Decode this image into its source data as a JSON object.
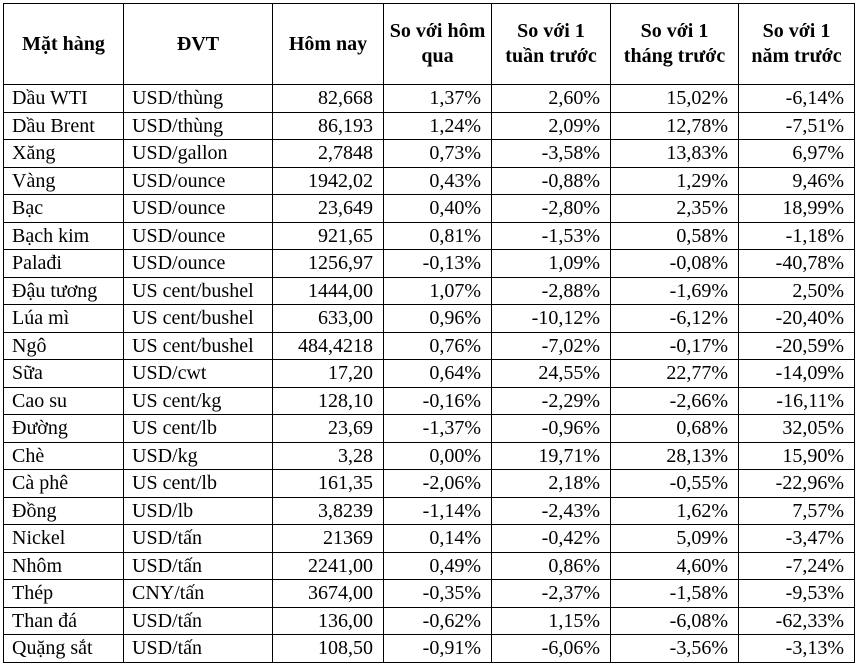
{
  "table": {
    "headers": [
      "Mặt hàng",
      "ĐVT",
      "Hôm nay",
      "So với hôm qua",
      "So với 1 tuần trước",
      "So với 1 tháng trước",
      "So với 1 năm trước"
    ],
    "rows": [
      [
        "Dầu WTI",
        "USD/thùng",
        "82,668",
        "1,37%",
        "2,60%",
        "15,02%",
        "-6,14%"
      ],
      [
        "Dầu Brent",
        "USD/thùng",
        "86,193",
        "1,24%",
        "2,09%",
        "12,78%",
        "-7,51%"
      ],
      [
        "Xăng",
        "USD/gallon",
        "2,7848",
        "0,73%",
        "-3,58%",
        "13,83%",
        "6,97%"
      ],
      [
        "Vàng",
        "USD/ounce",
        "1942,02",
        "0,43%",
        "-0,88%",
        "1,29%",
        "9,46%"
      ],
      [
        "Bạc",
        "USD/ounce",
        "23,649",
        "0,40%",
        "-2,80%",
        "2,35%",
        "18,99%"
      ],
      [
        "Bạch kim",
        "USD/ounce",
        "921,65",
        "0,81%",
        "-1,53%",
        "0,58%",
        "-1,18%"
      ],
      [
        "Palađi",
        "USD/ounce",
        "1256,97",
        "-0,13%",
        "1,09%",
        "-0,08%",
        "-40,78%"
      ],
      [
        "Đậu tương",
        "US cent/bushel",
        "1444,00",
        "1,07%",
        "-2,88%",
        "-1,69%",
        "2,50%"
      ],
      [
        "Lúa mì",
        "US cent/bushel",
        "633,00",
        "0,96%",
        "-10,12%",
        "-6,12%",
        "-20,40%"
      ],
      [
        "Ngô",
        "US cent/bushel",
        "484,4218",
        "0,76%",
        "-7,02%",
        "-0,17%",
        "-20,59%"
      ],
      [
        "Sữa",
        "USD/cwt",
        "17,20",
        "0,64%",
        "24,55%",
        "22,77%",
        "-14,09%"
      ],
      [
        "Cao su",
        "US cent/kg",
        "128,10",
        "-0,16%",
        "-2,29%",
        "-2,66%",
        "-16,11%"
      ],
      [
        "Đường",
        "US cent/lb",
        "23,69",
        "-1,37%",
        "-0,96%",
        "0,68%",
        "32,05%"
      ],
      [
        "Chè",
        "USD/kg",
        "3,28",
        "0,00%",
        "19,71%",
        "28,13%",
        "15,90%"
      ],
      [
        "Cà phê",
        "US cent/lb",
        "161,35",
        "-2,06%",
        "2,18%",
        "-0,55%",
        "-22,96%"
      ],
      [
        "Đồng",
        "USD/lb",
        "3,8239",
        "-1,14%",
        "-2,43%",
        "1,62%",
        "7,57%"
      ],
      [
        "Nickel",
        "USD/tấn",
        "21369",
        "0,14%",
        "-0,42%",
        "5,09%",
        "-3,47%"
      ],
      [
        "Nhôm",
        "USD/tấn",
        "2241,00",
        "0,49%",
        "0,86%",
        "4,60%",
        "-7,24%"
      ],
      [
        "Thép",
        "CNY/tấn",
        "3674,00",
        "-0,35%",
        "-2,37%",
        "-1,58%",
        "-9,53%"
      ],
      [
        "Than đá",
        "USD/tấn",
        "136,00",
        "-0,62%",
        "1,15%",
        "-6,08%",
        "-62,33%"
      ],
      [
        "Quặng sắt",
        "USD/tấn",
        "108,50",
        "-0,91%",
        "-6,06%",
        "-3,56%",
        "-3,13%"
      ]
    ]
  }
}
